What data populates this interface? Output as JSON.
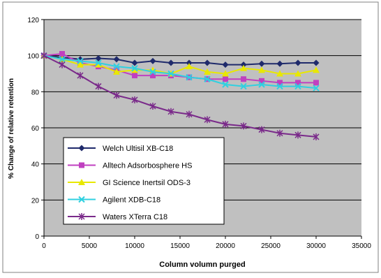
{
  "chart_data": {
    "type": "line",
    "title": "",
    "xlabel": "Column volumn purged",
    "ylabel": "% Change of relative retention",
    "xlim": [
      0,
      35000
    ],
    "ylim": [
      0,
      120
    ],
    "x_ticks": [
      0,
      5000,
      10000,
      15000,
      20000,
      25000,
      30000,
      35000
    ],
    "y_ticks": [
      0,
      20,
      40,
      60,
      80,
      100,
      120
    ],
    "grid": "horizontal",
    "plot_background": "#c0c0c0",
    "legend_position": "lower-left",
    "series": [
      {
        "name": "Welch Ultisil XB-C18",
        "color": "#1f2a6b",
        "marker": "diamond-icon",
        "x": [
          0,
          2000,
          4000,
          6000,
          8000,
          10000,
          12000,
          14000,
          16000,
          18000,
          20000,
          22000,
          24000,
          26000,
          28000,
          30000
        ],
        "y": [
          100,
          99,
          98,
          98.5,
          98,
          96,
          97,
          96,
          96,
          96,
          95,
          95,
          95.5,
          95.5,
          96,
          96
        ]
      },
      {
        "name": "Alltech Adsorbosphere HS",
        "color": "#c040c0",
        "marker": "square-icon",
        "x": [
          0,
          2000,
          4000,
          6000,
          8000,
          10000,
          12000,
          14000,
          16000,
          18000,
          20000,
          22000,
          24000,
          26000,
          28000,
          30000
        ],
        "y": [
          100,
          101,
          96,
          94,
          92,
          89,
          89,
          89,
          88,
          87,
          87,
          87,
          86,
          85,
          85,
          85
        ]
      },
      {
        "name": "GI Science Inertsil ODS-3",
        "color": "#e8e800",
        "marker": "triangle-icon",
        "x": [
          0,
          2000,
          4000,
          6000,
          8000,
          10000,
          12000,
          14000,
          16000,
          18000,
          20000,
          22000,
          24000,
          26000,
          28000,
          30000
        ],
        "y": [
          100,
          98,
          95,
          95,
          91,
          92,
          92,
          90,
          94,
          91,
          90,
          93,
          92,
          90,
          90,
          92
        ]
      },
      {
        "name": "Agilent XDB-C18",
        "color": "#30d0e0",
        "marker": "x-icon",
        "x": [
          0,
          2000,
          4000,
          6000,
          8000,
          10000,
          12000,
          14000,
          16000,
          18000,
          20000,
          22000,
          24000,
          26000,
          28000,
          30000
        ],
        "y": [
          100,
          98,
          97,
          96,
          94,
          93,
          91,
          90,
          88,
          87,
          84,
          83,
          84,
          83,
          83,
          82
        ]
      },
      {
        "name": "Waters XTerra C18",
        "color": "#7a2a8a",
        "marker": "asterisk-icon",
        "x": [
          0,
          2000,
          4000,
          6000,
          8000,
          10000,
          12000,
          14000,
          16000,
          18000,
          20000,
          22000,
          24000,
          26000,
          28000,
          30000
        ],
        "y": [
          100,
          95,
          89,
          83,
          78,
          75.5,
          72,
          69,
          67.5,
          64.5,
          62,
          61,
          59,
          57,
          56,
          55
        ]
      }
    ]
  }
}
